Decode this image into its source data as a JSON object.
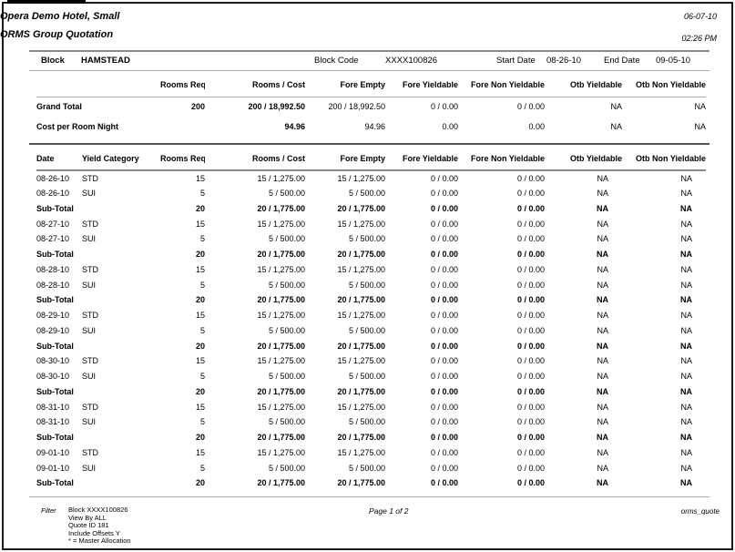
{
  "header": {
    "title": "Opera Demo Hotel, Small",
    "subtitle": "ORMS Group Quotation",
    "date": "06-07-10",
    "time": "02:26 PM"
  },
  "block_info": {
    "block_label": "Block",
    "block_value": "HAMSTEAD",
    "block_code_label": "Block Code",
    "block_code_value": "XXXX100826",
    "start_date_label": "Start Date",
    "start_date_value": "08-26-10",
    "end_date_label": "End Date",
    "end_date_value": "09-05-10"
  },
  "summary": {
    "columns": [
      "",
      "Rooms Req.",
      "Rooms / Cost",
      "Fore Empty",
      "Fore Yieldable",
      "Fore Non Yieldable",
      "Otb Yieldable",
      "Otb Non Yieldable"
    ],
    "column_keys": [
      "label",
      "rooms-req",
      "rooms-cost",
      "fore-empty",
      "fore-yieldable",
      "fore-non-yieldable",
      "otb-yieldable",
      "otb-non-yieldable"
    ],
    "rows": [
      {
        "cells": [
          "Grand Total",
          "200",
          "200 / 18,992.50",
          "200 / 18,992.50",
          "0 / 0.00",
          "0 / 0.00",
          "NA",
          "NA"
        ]
      },
      {
        "cells": [
          "Cost per Room Night",
          "",
          "94.96",
          "94.96",
          "0.00",
          "0.00",
          "NA",
          "NA"
        ]
      }
    ]
  },
  "detail": {
    "columns": [
      "Date",
      "Yield Category",
      "Rooms Req.",
      "Rooms / Cost",
      "Fore Empty",
      "Fore Yieldable",
      "Fore Non Yieldable",
      "Otb Yieldable",
      "Otb Non Yieldable"
    ],
    "column_keys": [
      "date",
      "yield-category",
      "rooms-req",
      "rooms-cost",
      "fore-empty",
      "fore-yieldable",
      "fore-non-yieldable",
      "otb-yieldable",
      "otb-non-yieldable"
    ],
    "rows": [
      {
        "bold": false,
        "cells": [
          "08-26-10",
          "STD",
          "15",
          "15 / 1,275.00",
          "15 / 1,275.00",
          "0 / 0.00",
          "0 / 0.00",
          "NA",
          "NA"
        ]
      },
      {
        "bold": false,
        "cells": [
          "08-26-10",
          "SUI",
          "5",
          "5 / 500.00",
          "5 / 500.00",
          "0 / 0.00",
          "0 / 0.00",
          "NA",
          "NA"
        ]
      },
      {
        "bold": true,
        "cells": [
          "Sub-Total",
          "",
          "20",
          "20 / 1,775.00",
          "20 / 1,775.00",
          "0 / 0.00",
          "0 / 0.00",
          "NA",
          "NA"
        ]
      },
      {
        "bold": false,
        "cells": [
          "08-27-10",
          "STD",
          "15",
          "15 / 1,275.00",
          "15 / 1,275.00",
          "0 / 0.00",
          "0 / 0.00",
          "NA",
          "NA"
        ]
      },
      {
        "bold": false,
        "cells": [
          "08-27-10",
          "SUI",
          "5",
          "5 / 500.00",
          "5 / 500.00",
          "0 / 0.00",
          "0 / 0.00",
          "NA",
          "NA"
        ]
      },
      {
        "bold": true,
        "cells": [
          "Sub-Total",
          "",
          "20",
          "20 / 1,775.00",
          "20 / 1,775.00",
          "0 / 0.00",
          "0 / 0.00",
          "NA",
          "NA"
        ]
      },
      {
        "bold": false,
        "cells": [
          "08-28-10",
          "STD",
          "15",
          "15 / 1,275.00",
          "15 / 1,275.00",
          "0 / 0.00",
          "0 / 0.00",
          "NA",
          "NA"
        ]
      },
      {
        "bold": false,
        "cells": [
          "08-28-10",
          "SUI",
          "5",
          "5 / 500.00",
          "5 / 500.00",
          "0 / 0.00",
          "0 / 0.00",
          "NA",
          "NA"
        ]
      },
      {
        "bold": true,
        "cells": [
          "Sub-Total",
          "",
          "20",
          "20 / 1,775.00",
          "20 / 1,775.00",
          "0 / 0.00",
          "0 / 0.00",
          "NA",
          "NA"
        ]
      },
      {
        "bold": false,
        "cells": [
          "08-29-10",
          "STD",
          "15",
          "15 / 1,275.00",
          "15 / 1,275.00",
          "0 / 0.00",
          "0 / 0.00",
          "NA",
          "NA"
        ]
      },
      {
        "bold": false,
        "cells": [
          "08-29-10",
          "SUI",
          "5",
          "5 / 500.00",
          "5 / 500.00",
          "0 / 0.00",
          "0 / 0.00",
          "NA",
          "NA"
        ]
      },
      {
        "bold": true,
        "cells": [
          "Sub-Total",
          "",
          "20",
          "20 / 1,775.00",
          "20 / 1,775.00",
          "0 / 0.00",
          "0 / 0.00",
          "NA",
          "NA"
        ]
      },
      {
        "bold": false,
        "cells": [
          "08-30-10",
          "STD",
          "15",
          "15 / 1,275.00",
          "15 / 1,275.00",
          "0 / 0.00",
          "0 / 0.00",
          "NA",
          "NA"
        ]
      },
      {
        "bold": false,
        "cells": [
          "08-30-10",
          "SUI",
          "5",
          "5 / 500.00",
          "5 / 500.00",
          "0 / 0.00",
          "0 / 0.00",
          "NA",
          "NA"
        ]
      },
      {
        "bold": true,
        "cells": [
          "Sub-Total",
          "",
          "20",
          "20 / 1,775.00",
          "20 / 1,775.00",
          "0 / 0.00",
          "0 / 0.00",
          "NA",
          "NA"
        ]
      },
      {
        "bold": false,
        "cells": [
          "08-31-10",
          "STD",
          "15",
          "15 / 1,275.00",
          "15 / 1,275.00",
          "0 / 0.00",
          "0 / 0.00",
          "NA",
          "NA"
        ]
      },
      {
        "bold": false,
        "cells": [
          "08-31-10",
          "SUI",
          "5",
          "5 / 500.00",
          "5 / 500.00",
          "0 / 0.00",
          "0 / 0.00",
          "NA",
          "NA"
        ]
      },
      {
        "bold": true,
        "cells": [
          "Sub-Total",
          "",
          "20",
          "20 / 1,775.00",
          "20 / 1,775.00",
          "0 / 0.00",
          "0 / 0.00",
          "NA",
          "NA"
        ]
      },
      {
        "bold": false,
        "cells": [
          "09-01-10",
          "STD",
          "15",
          "15 / 1,275.00",
          "15 / 1,275.00",
          "0 / 0.00",
          "0 / 0.00",
          "NA",
          "NA"
        ]
      },
      {
        "bold": false,
        "cells": [
          "09-01-10",
          "SUI",
          "5",
          "5 / 500.00",
          "5 / 500.00",
          "0 / 0.00",
          "0 / 0.00",
          "NA",
          "NA"
        ]
      },
      {
        "bold": true,
        "cells": [
          "Sub-Total",
          "",
          "20",
          "20 / 1,775.00",
          "20 / 1,775.00",
          "0 / 0.00",
          "0 / 0.00",
          "NA",
          "NA"
        ]
      }
    ]
  },
  "footer": {
    "filter_label": "Filter",
    "filter_lines": [
      "Block XXXX100826",
      "View By ALL",
      "Quote ID 181",
      "Include Offsets Y",
      "* = Master Allocation"
    ],
    "page_indicator": "Page 1 of 2",
    "report_code": "orms_quote"
  }
}
